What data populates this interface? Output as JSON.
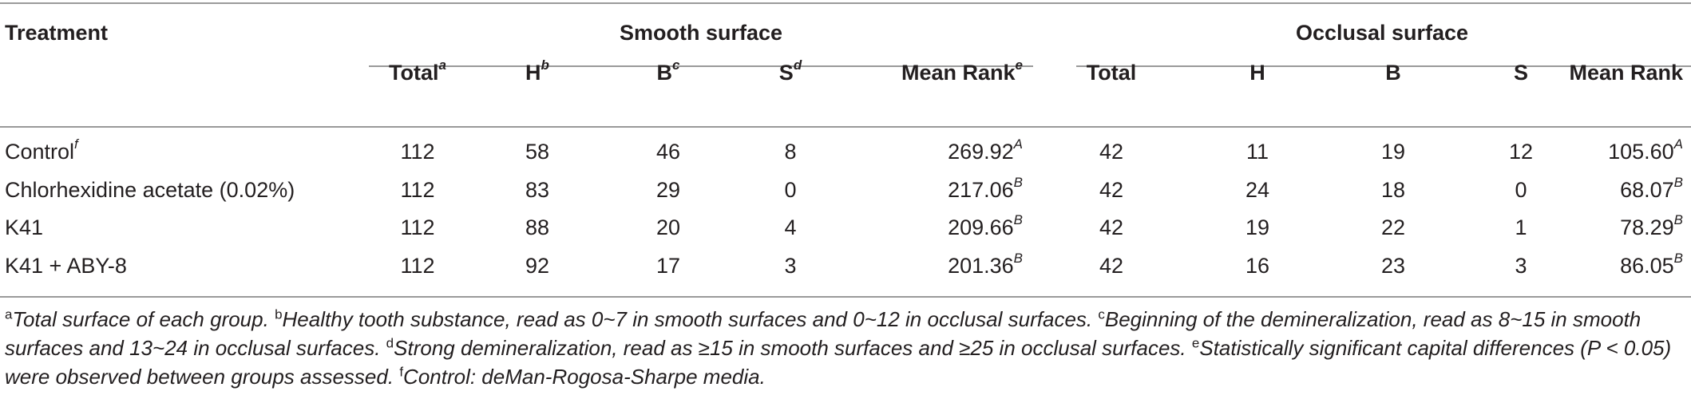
{
  "table": {
    "col_treatment": "Treatment",
    "group_smooth": "Smooth surface",
    "group_occlusal": "Occlusal surface",
    "smooth_headers": [
      {
        "label": "Total",
        "mark": "a"
      },
      {
        "label": "H",
        "mark": "b"
      },
      {
        "label": "B",
        "mark": "c"
      },
      {
        "label": "S",
        "mark": "d"
      },
      {
        "label": "Mean Rank",
        "mark": "e"
      }
    ],
    "occlusal_headers": [
      "Total",
      "H",
      "B",
      "S",
      "Mean Rank"
    ],
    "rows": [
      {
        "treatment": "Control",
        "mark": "f",
        "smooth": [
          "112",
          "58",
          "46",
          "8"
        ],
        "smooth_rank": "269.92",
        "smooth_sig": "A",
        "occlusal": [
          "42",
          "11",
          "19",
          "12"
        ],
        "occlusal_rank": "105.60",
        "occlusal_sig": "A"
      },
      {
        "treatment": "Chlorhexidine acetate (0.02%)",
        "mark": "",
        "smooth": [
          "112",
          "83",
          "29",
          "0"
        ],
        "smooth_rank": "217.06",
        "smooth_sig": "B",
        "occlusal": [
          "42",
          "24",
          "18",
          "0"
        ],
        "occlusal_rank": "68.07",
        "occlusal_sig": "B"
      },
      {
        "treatment": "K41",
        "mark": "",
        "smooth": [
          "112",
          "88",
          "20",
          "4"
        ],
        "smooth_rank": "209.66",
        "smooth_sig": "B",
        "occlusal": [
          "42",
          "19",
          "22",
          "1"
        ],
        "occlusal_rank": "78.29",
        "occlusal_sig": "B"
      },
      {
        "treatment": "K41 + ABY-8",
        "mark": "",
        "smooth": [
          "112",
          "92",
          "17",
          "3"
        ],
        "smooth_rank": "201.36",
        "smooth_sig": "B",
        "occlusal": [
          "42",
          "16",
          "23",
          "3"
        ],
        "occlusal_rank": "86.05",
        "occlusal_sig": "B"
      }
    ]
  },
  "footnotes": [
    {
      "mark": "a",
      "text": "Total surface of each group."
    },
    {
      "mark": "b",
      "text": "Healthy tooth substance, read as 0~7 in smooth surfaces and 0~12 in occlusal surfaces."
    },
    {
      "mark": "c",
      "text": "Beginning of the demineralization, read as 8~15 in smooth surfaces and 13~24 in occlusal surfaces."
    },
    {
      "mark": "d",
      "text": "Strong demineralization, read as ≥15 in smooth surfaces and ≥25 in occlusal surfaces."
    },
    {
      "mark": "e",
      "text": "Statistically significant capital differences (P < 0.05) were observed between groups assessed."
    },
    {
      "mark": "f",
      "text": "Control: deMan-Rogosa-Sharpe media."
    }
  ]
}
